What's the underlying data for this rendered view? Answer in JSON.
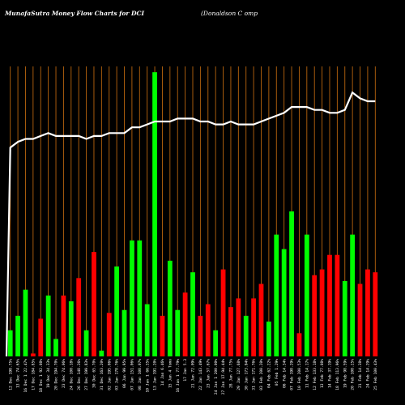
{
  "header": {
    "title": "MunafaSutra  Money Flow  Charts for DCI",
    "company": "(Donaldson  C                                    omp"
  },
  "colors": {
    "background": "#000000",
    "grid": "#b8640e",
    "up": "#00ff00",
    "down": "#ff0000",
    "line": "#ffffff"
  },
  "chart_data": {
    "type": "bar",
    "title": "MunafaSutra  Money Flow  Charts for DCI",
    "grid": true,
    "categories": [
      "12 Dec 198.75%",
      "13 Dec 74.65%",
      "16 Dec 1 22.47%",
      "17 Dec 184.85%",
      "18 Dec 1 92.08%",
      "19 Dec 34.33%",
      "20 Dec 194.70%",
      "23 Dec 74.06%",
      "24 Dec 100.18%",
      "26 Dec 148.26%",
      "27 Dec 199.83%",
      "30 Dec 65.70%",
      "31 Dec 163.20%",
      "02 Jan 195.06%",
      "03 Jan 178.76%",
      "06 Jan 99.95%",
      "07 Jan 151.06%",
      "08 Jan 108.07%",
      "10 Jan 1 66.35%",
      "13 Jan 191.20%",
      "14 Jan 6.46%",
      "15 Jan 4 Tomo",
      "16 Jan 1 77.79%",
      "17 Jan 5.3",
      "21 Jan 72.09%",
      "22 Jan 143.49%",
      "23 Jan 57.67%",
      "24 Jan 1 200.00%",
      "27 Jan 17.94.44%",
      "28 Jan 77.75%",
      "29 Jan 127.68%",
      "30 Jan 173.94%",
      "31 Jan 171.76%",
      "03 Feb 200.20%",
      "04 Feb 62.22%",
      "05 Feb 1.29%",
      "06 Feb 14.34%",
      "07 Feb 198.29%",
      "10 Feb 200.53%",
      "11 Feb 14.17%",
      "12 Feb 133.18%",
      "13 Feb 77.08%",
      "14 Feb 37.19%",
      "18 Feb 113.96%",
      "19 Feb 98.59%",
      "20 Feb 108.25%",
      "21 Feb 14.38%",
      "24 Feb 14.29%",
      "25 Feb 100.43%"
    ],
    "values": [
      9,
      14,
      23,
      1,
      13,
      21,
      6,
      21,
      19,
      27,
      9,
      36,
      2,
      15,
      31,
      16,
      40,
      40,
      18,
      98,
      14,
      33,
      16,
      22,
      29,
      14,
      18,
      9,
      30,
      17,
      20,
      14,
      20,
      25,
      12,
      42,
      37,
      50,
      8,
      42,
      28,
      30,
      35,
      35,
      26,
      42,
      25,
      30,
      29
    ],
    "directions": [
      "up",
      "up",
      "up",
      "down",
      "down",
      "up",
      "up",
      "down",
      "up",
      "down",
      "up",
      "down",
      "up",
      "down",
      "up",
      "up",
      "up",
      "up",
      "up",
      "up",
      "down",
      "up",
      "up",
      "down",
      "up",
      "down",
      "down",
      "up",
      "down",
      "down",
      "down",
      "up",
      "down",
      "down",
      "up",
      "up",
      "up",
      "up",
      "down",
      "up",
      "down",
      "down",
      "down",
      "down",
      "up",
      "up",
      "down",
      "down",
      "down"
    ],
    "line_values": [
      72,
      74,
      75,
      75,
      76,
      77,
      76,
      76,
      76,
      76,
      75,
      76,
      76,
      77,
      77,
      77,
      79,
      79,
      80,
      81,
      81,
      81,
      82,
      82,
      82,
      81,
      81,
      80,
      80,
      81,
      80,
      80,
      80,
      81,
      82,
      83,
      84,
      86,
      86,
      86,
      85,
      85,
      84,
      84,
      85,
      91,
      89,
      88,
      88
    ]
  }
}
